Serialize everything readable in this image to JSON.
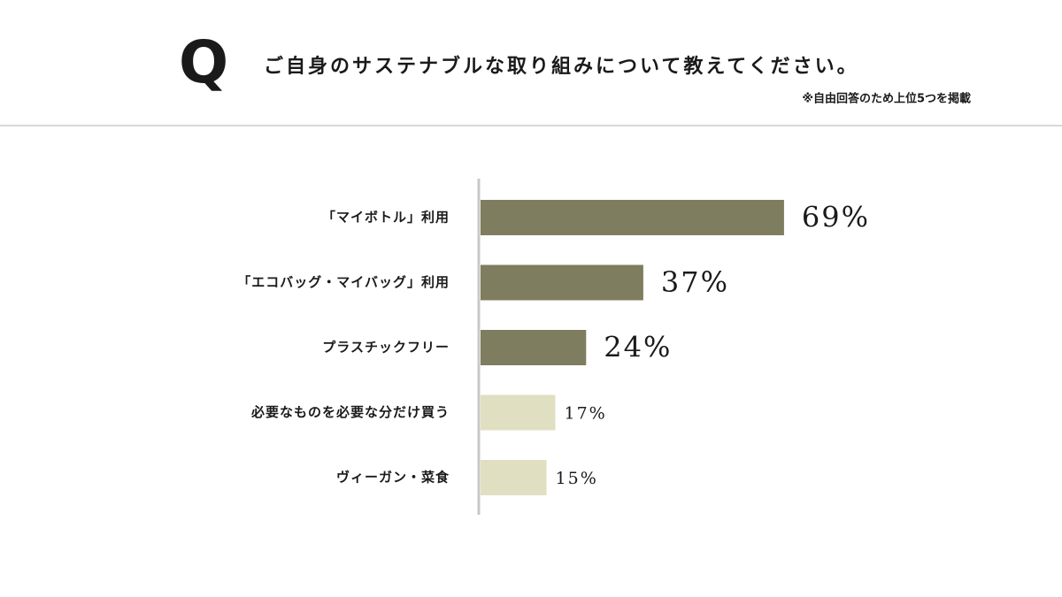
{
  "chart_data": {
    "type": "barh",
    "title_prefix": "Q",
    "title": "ご自身のサステナブルな取り組みについて教えてください。",
    "subtitle": "※自由回答のため上位5つを掲載",
    "categories": [
      "「マイボトル」利用",
      "「エコバッグ・マイバッグ」利用",
      "プラスチックフリー",
      "必要なものを必要な分だけ買う",
      "ヴィーガン・菜食"
    ],
    "values": [
      69,
      37,
      24,
      17,
      15
    ],
    "value_labels": [
      "69%",
      "37%",
      "24%",
      "17%",
      "15%"
    ],
    "colors": [
      "#7f7d60",
      "#7f7d60",
      "#7f7d60",
      "#e0dfc2",
      "#e0dfc2"
    ],
    "xlim": [
      0,
      100
    ]
  }
}
